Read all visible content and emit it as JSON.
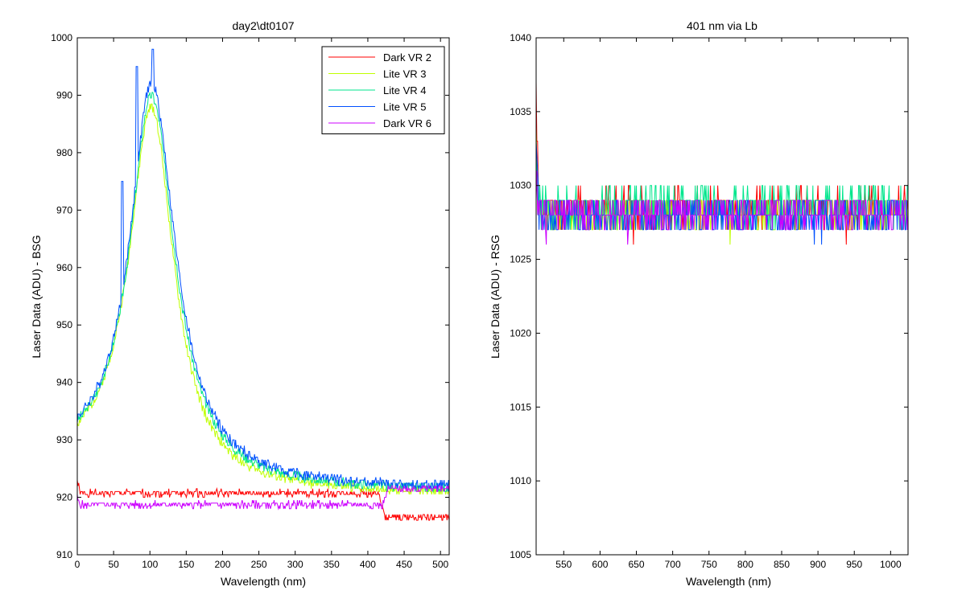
{
  "chart_data": [
    {
      "type": "line",
      "title": "day2\\dt0107",
      "xlabel": "Wavelength (nm)",
      "ylabel": "Laser Data (ADU) - BSG",
      "xlim": [
        0,
        512
      ],
      "ylim": [
        910,
        1000
      ],
      "xticks": [
        0,
        50,
        100,
        150,
        200,
        250,
        300,
        350,
        400,
        450,
        500
      ],
      "yticks": [
        910,
        920,
        930,
        940,
        950,
        960,
        970,
        980,
        990,
        1000
      ],
      "xtick_labels": [
        "0",
        "50",
        "100",
        "150",
        "200",
        "250",
        "300",
        "350",
        "400",
        "450",
        "500"
      ],
      "ytick_labels": [
        "910",
        "920",
        "930",
        "940",
        "950",
        "960",
        "970",
        "980",
        "990",
        "1000"
      ],
      "legend_position": "top-right",
      "series": [
        {
          "name": "Dark VR 2",
          "color": "#ff0000",
          "style": "flat",
          "level": 920.7,
          "amp": 0.6,
          "start": 923,
          "step_at": 415,
          "level_after": 916.5,
          "seed": 1
        },
        {
          "name": "Lite VR 3",
          "color": "#bfff00",
          "style": "peak",
          "base": 920.5,
          "peak_x": 102,
          "peak": 988,
          "left_start": 933,
          "wl": 37,
          "wr": 38,
          "amp": 0.8,
          "seed": 2
        },
        {
          "name": "Lite VR 4",
          "color": "#00e68c",
          "style": "peak",
          "base": 921.0,
          "peak_x": 102,
          "peak": 990,
          "left_start": 933.5,
          "wl": 36,
          "wr": 40,
          "amp": 0.8,
          "seed": 3
        },
        {
          "name": "Lite VR 5",
          "color": "#0050ff",
          "style": "peak",
          "base": 921.3,
          "peak_x": 102,
          "peak": 992,
          "left_start": 934,
          "wl": 36,
          "wr": 41,
          "amp": 0.9,
          "seed": 4,
          "spikes": [
            [
              82,
              995
            ],
            [
              104,
              998
            ],
            [
              62,
              975
            ]
          ]
        },
        {
          "name": "Dark VR 6",
          "color": "#cc00ff",
          "style": "flat",
          "level": 918.7,
          "amp": 0.6,
          "start": 920,
          "step_at": 420,
          "level_after": 921.5,
          "seed": 5
        }
      ]
    },
    {
      "type": "line",
      "title": "401 nm via Lb",
      "xlabel": "Wavelength (nm)",
      "ylabel": "Laser Data (ADU) - RSG",
      "xlim": [
        512,
        1024
      ],
      "ylim": [
        1005,
        1040
      ],
      "xticks": [
        550,
        600,
        650,
        700,
        750,
        800,
        850,
        900,
        950,
        1000
      ],
      "yticks": [
        1005,
        1010,
        1015,
        1020,
        1025,
        1030,
        1035,
        1040
      ],
      "xtick_labels": [
        "550",
        "600",
        "650",
        "700",
        "750",
        "800",
        "850",
        "900",
        "950",
        "1000"
      ],
      "ytick_labels": [
        "1005",
        "1010",
        "1015",
        "1020",
        "1025",
        "1030",
        "1035",
        "1040"
      ],
      "series": [
        {
          "color": "#ff0000",
          "style": "noise",
          "level": 1028.5,
          "amp": 1.2,
          "start": 1036,
          "seed": 11
        },
        {
          "color": "#bfff00",
          "style": "noise",
          "level": 1028.0,
          "amp": 1.1,
          "start": 1033,
          "seed": 12
        },
        {
          "color": "#00e68c",
          "style": "noise",
          "level": 1028.6,
          "amp": 1.3,
          "start": 1032,
          "seed": 13
        },
        {
          "color": "#0050ff",
          "style": "noise",
          "level": 1027.9,
          "amp": 1.0,
          "start": 1033,
          "seed": 14
        },
        {
          "color": "#cc00ff",
          "style": "noise",
          "level": 1028.2,
          "amp": 1.2,
          "start": 1030,
          "seed": 15
        }
      ]
    }
  ]
}
